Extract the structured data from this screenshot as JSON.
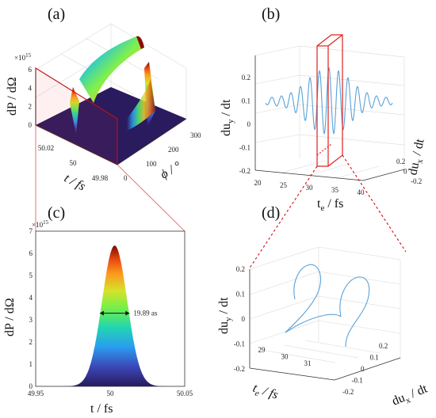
{
  "panels": {
    "a": {
      "label": "(a)",
      "zscale": "×10",
      "zscale_exp": "15",
      "zlabel": "dP / dΩ",
      "ylabel": "t / fs",
      "xlabel": "ϕ / °",
      "zticks": [
        "0",
        "2",
        "4",
        "6"
      ],
      "tticks": [
        "50.02",
        "50",
        "49.98"
      ],
      "phiticks": [
        "0",
        "100",
        "200",
        "300"
      ]
    },
    "b": {
      "label": "(b)",
      "zlabel_main": "du",
      "zlabel_sub": "y",
      "zlabel_tail": " / dt",
      "xlabel_main": "t",
      "xlabel_sub": "e",
      "xlabel_tail": " / fs",
      "ylabel_main": "du",
      "ylabel_sub": "x",
      "ylabel_tail": " / dt",
      "zticks": [
        "0.2",
        "0.1",
        "0",
        "-0.1",
        "-0.2"
      ],
      "xticks": [
        "20",
        "25",
        "30",
        "35",
        "40"
      ],
      "yticks": [
        "0.2",
        "0",
        "-0.2"
      ]
    },
    "c": {
      "label": "(c)",
      "yscale": "×10",
      "yscale_exp": "15",
      "ylabel": "dP / dΩ",
      "xlabel": "t / fs",
      "yticks": [
        "0",
        "1",
        "2",
        "3",
        "4",
        "5",
        "6",
        "7"
      ],
      "xticks": [
        "49.95",
        "50",
        "50.05"
      ],
      "fwhm_text": "19.89 as"
    },
    "d": {
      "label": "(d)",
      "zlabel_main": "du",
      "zlabel_sub": "y",
      "zlabel_tail": " / dt",
      "xlabel_main": "t",
      "xlabel_sub": "e",
      "xlabel_tail": " / fs",
      "ylabel_main": "du",
      "ylabel_sub": "x",
      "ylabel_tail": " / dt",
      "zticks": [
        "0.2",
        "0.1",
        "0",
        "-0.1",
        "-0.2"
      ],
      "xticks": [
        "29",
        "30",
        "31"
      ],
      "yticks": [
        "0.2",
        "0.1",
        "0",
        "-0.1",
        "-0.2"
      ]
    }
  },
  "colors": {
    "curve": "#5aa2d8",
    "box": "#e02020"
  },
  "chart_data": [
    {
      "panel": "a",
      "type": "surface",
      "colormap": "turbo",
      "x_axis": "ϕ (°)",
      "y_axis": "t (fs)",
      "z_axis": "dP/dΩ (×10^15)",
      "xlim": [
        0,
        360
      ],
      "ylim": [
        49.97,
        50.03
      ],
      "zlim": [
        0,
        7
      ],
      "peak_z": 6.4,
      "peak_phi": 90
    },
    {
      "panel": "b",
      "type": "line3d",
      "series": [
        {
          "values_desc": "oscillating du_y vs t_e, envelope peaking near t_e≈30 fs"
        }
      ],
      "xlim": [
        20,
        40
      ],
      "ylim": [
        -0.2,
        0.2
      ],
      "zlim": [
        -0.2,
        0.2
      ],
      "t": [
        20,
        21,
        22,
        23,
        24,
        25,
        26,
        27,
        28,
        29,
        30,
        31,
        32,
        33,
        34,
        35,
        36,
        37,
        38,
        39,
        40
      ],
      "envelope": [
        0.02,
        0.02,
        0.025,
        0.03,
        0.04,
        0.06,
        0.09,
        0.13,
        0.17,
        0.19,
        0.2,
        0.19,
        0.17,
        0.13,
        0.09,
        0.06,
        0.04,
        0.03,
        0.025,
        0.02,
        0.02
      ]
    },
    {
      "panel": "c",
      "type": "area",
      "colormap": "turbo",
      "x": [
        49.95,
        49.96,
        49.97,
        49.98,
        49.985,
        49.99,
        49.995,
        50.0,
        50.005,
        50.01,
        50.015,
        50.02,
        50.03,
        50.04,
        50.05
      ],
      "y": [
        0,
        0,
        0,
        0.02,
        0.3,
        1.6,
        4.0,
        6.1,
        6.3,
        4.4,
        1.8,
        0.4,
        0,
        0,
        0
      ],
      "xlim": [
        49.95,
        50.05
      ],
      "ylim": [
        0,
        7
      ],
      "fwhm_as": 19.89,
      "fwhm_y": 3.3
    },
    {
      "panel": "d",
      "type": "line3d",
      "series": [
        {
          "values_desc": "two helical loops of du_x, du_y vs t_e"
        }
      ],
      "xlim": [
        28.5,
        31.5
      ],
      "ylim": [
        -0.2,
        0.2
      ],
      "zlim": [
        -0.2,
        0.2
      ]
    }
  ]
}
